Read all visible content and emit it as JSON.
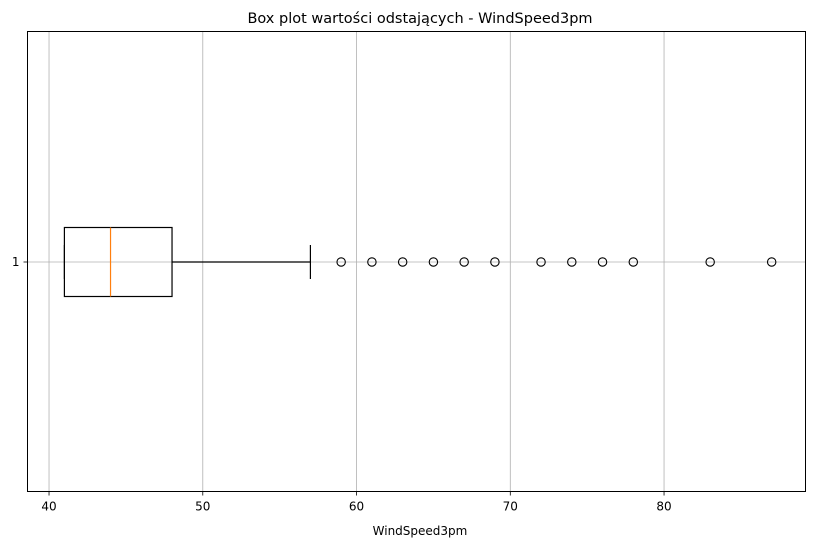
{
  "chart_data": {
    "type": "box",
    "title": "Box plot wartości odstających - WindSpeed3pm",
    "xlabel": "WindSpeed3pm",
    "ylabel": "",
    "orientation": "horizontal",
    "xlim": [
      38.6,
      89.2
    ],
    "xticks": [
      40,
      50,
      60,
      70,
      80
    ],
    "yticks": [
      "1"
    ],
    "grid": true,
    "box": {
      "category": "1",
      "whisker_low": 41,
      "q1": 41,
      "median": 44,
      "q3": 48,
      "whisker_high": 57,
      "outliers": [
        59,
        61,
        63,
        65,
        67,
        69,
        72,
        74,
        76,
        78,
        83,
        87
      ]
    },
    "colors": {
      "median": "#ff7f0e",
      "box": "#000000",
      "grid": "#b0b0b0"
    }
  }
}
